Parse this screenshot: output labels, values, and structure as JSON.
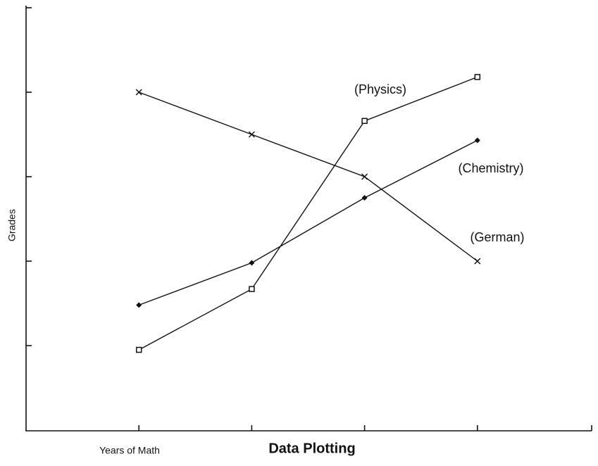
{
  "chart_data": {
    "type": "line",
    "title": "Data Plotting",
    "xlabel": "Years of Math",
    "ylabel": "Grades",
    "x": [
      1,
      2,
      3,
      4
    ],
    "xlim": [
      0,
      5
    ],
    "xticks": [
      1,
      2,
      3,
      4
    ],
    "ylim": [
      0,
      5
    ],
    "yticks": [
      1,
      2,
      3,
      4
    ],
    "series": [
      {
        "name": "German",
        "color": "#111111",
        "marker": "x",
        "values": [
          4.0,
          3.5,
          3.0,
          2.0
        ]
      },
      {
        "name": "Physics",
        "color": "#111111",
        "marker": "square",
        "values": [
          0.95,
          1.67,
          3.66,
          4.18
        ]
      },
      {
        "name": "Chemistry",
        "color": "#111111",
        "marker": "diamond",
        "values": [
          1.48,
          1.98,
          2.75,
          3.43
        ]
      }
    ],
    "annotations": [
      "(Physics)",
      "(Chemistry)",
      "(German)"
    ]
  }
}
